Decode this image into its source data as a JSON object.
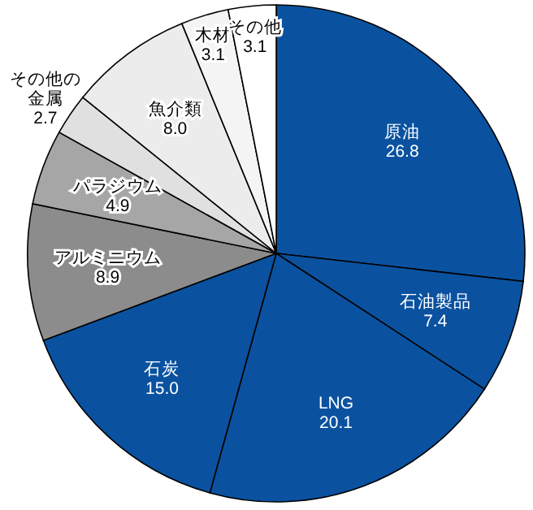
{
  "chart_data": {
    "type": "pie",
    "categories": [
      "原油",
      "石油製品",
      "LNG",
      "石炭",
      "アルミニウム",
      "パラジウム",
      "その他の金属",
      "魚介類",
      "木材",
      "その他"
    ],
    "values": [
      26.8,
      7.4,
      20.1,
      15.0,
      8.9,
      4.9,
      2.7,
      8.0,
      3.1,
      3.1
    ],
    "colors": [
      "#0a52a0",
      "#0a52a0",
      "#0a52a0",
      "#0a52a0",
      "#8c8c8c",
      "#a6a6a6",
      "#e0e0e0",
      "#ececec",
      "#f4f4f4",
      "#ffffff"
    ],
    "value_labels": [
      "26.8",
      "7.4",
      "20.1",
      "15.0",
      "8.9",
      "4.9",
      "2.7",
      "8.0",
      "3.1",
      "3.1"
    ]
  }
}
